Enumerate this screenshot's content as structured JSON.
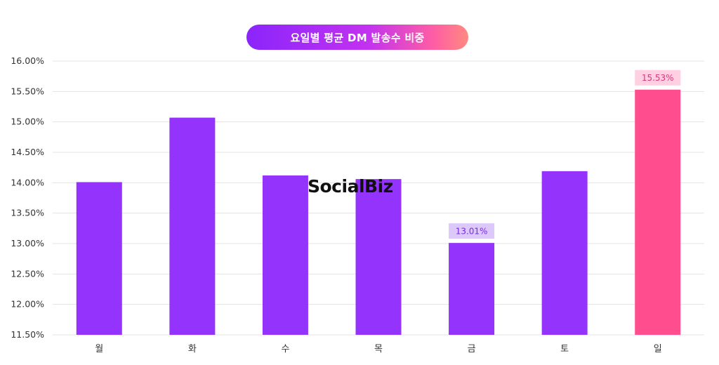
{
  "title": "요일별 평균 DM 발송수 비중",
  "watermark": "SocialBiz",
  "colors": {
    "bar": "#9333fb",
    "highlight_bar": "#ff4d8d",
    "grid": "#e3e3e3",
    "tick_text": "#333333"
  },
  "chart_data": {
    "type": "bar",
    "title": "요일별 평균 DM 발송수 비중",
    "xlabel": "",
    "ylabel": "",
    "categories": [
      "월",
      "화",
      "수",
      "목",
      "금",
      "토",
      "일"
    ],
    "values": [
      14.01,
      15.07,
      14.12,
      14.06,
      13.01,
      14.19,
      15.53
    ],
    "ylim": [
      11.5,
      16.0
    ],
    "yticks": [
      "16.00%",
      "15.50%",
      "15.00%",
      "14.50%",
      "14.00%",
      "13.50%",
      "13.00%",
      "12.50%",
      "12.00%",
      "11.50%"
    ],
    "ytick_values": [
      16.0,
      15.5,
      15.0,
      14.5,
      14.0,
      13.5,
      13.0,
      12.5,
      12.0,
      11.5
    ],
    "grid": true,
    "highlight_index": 6,
    "data_labels": [
      {
        "index": 4,
        "text": "13.01%",
        "label_bg": "#dcc8fb",
        "label_color": "#7a2be0"
      },
      {
        "index": 6,
        "text": "15.53%",
        "label_bg": "#ffd0e2",
        "label_color": "#e0337a"
      }
    ]
  }
}
